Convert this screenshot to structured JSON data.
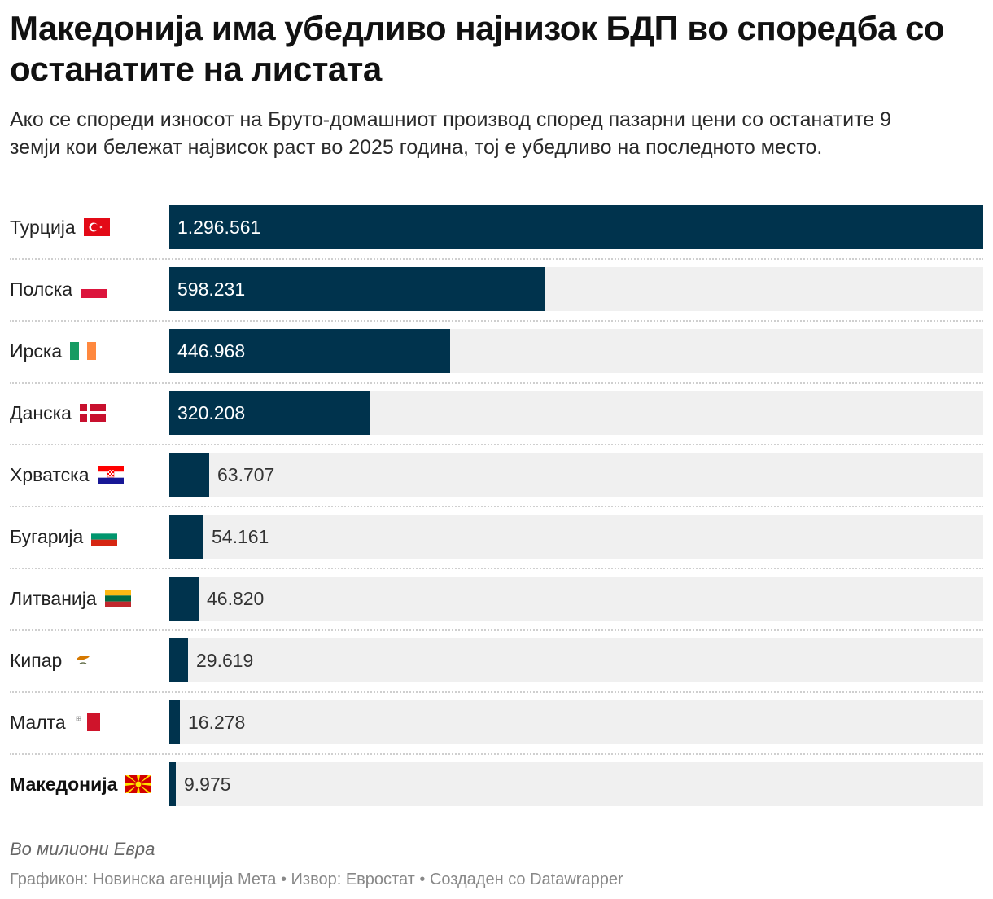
{
  "header": {
    "title": "Македонија има убедливо најнизок БДП во споредба со останатите на листата",
    "subtitle": "Ако се спореди износот на Бруто-домашниот производ според пазарни цени со останатите 9 земји кои бележат највисок раст во 2025 година, тој е убедливо на последното место."
  },
  "notes": {
    "unit": "Во милиони Евра",
    "footer": "Графикон: Новинска агенција Мета • Извор: Евростат • Создаден со Datawrapper"
  },
  "colors": {
    "bar": "#00334d",
    "track": "#f0f0f0",
    "label_inside": "#ffffff",
    "label_outside": "#333333"
  },
  "chart_data": {
    "type": "bar",
    "orientation": "horizontal",
    "title": "Македонија има убедливо најнизок БДП во споредба со останатите на листата",
    "subtitle": "Ако се спореди износот на Бруто-домашниот производ според пазарни цени со останатите 9 земји кои бележат највисок раст во 2025 година, тој е убедливо на последното место.",
    "ylabel": "Во милиони Евра",
    "xlim": [
      0,
      1296561
    ],
    "grid": false,
    "categories": [
      "Турција",
      "Полска",
      "Ирска",
      "Данска",
      "Хрватска",
      "Бугарија",
      "Литванија",
      "Кипар",
      "Малта",
      "Македонија"
    ],
    "values": [
      1296561,
      598231,
      446968,
      320208,
      63707,
      54161,
      46820,
      29619,
      16278,
      9975
    ],
    "value_labels": [
      "1.296.561",
      "598.231",
      "446.968",
      "320.208",
      "63.707",
      "54.161",
      "46.820",
      "29.619",
      "16.278",
      "9.975"
    ],
    "flags": [
      "turkey-flag-icon",
      "poland-flag-icon",
      "ireland-flag-icon",
      "denmark-flag-icon",
      "croatia-flag-icon",
      "bulgaria-flag-icon",
      "lithuania-flag-icon",
      "cyprus-flag-icon",
      "malta-flag-icon",
      "macedonia-flag-icon"
    ],
    "highlight": "Македонија"
  }
}
